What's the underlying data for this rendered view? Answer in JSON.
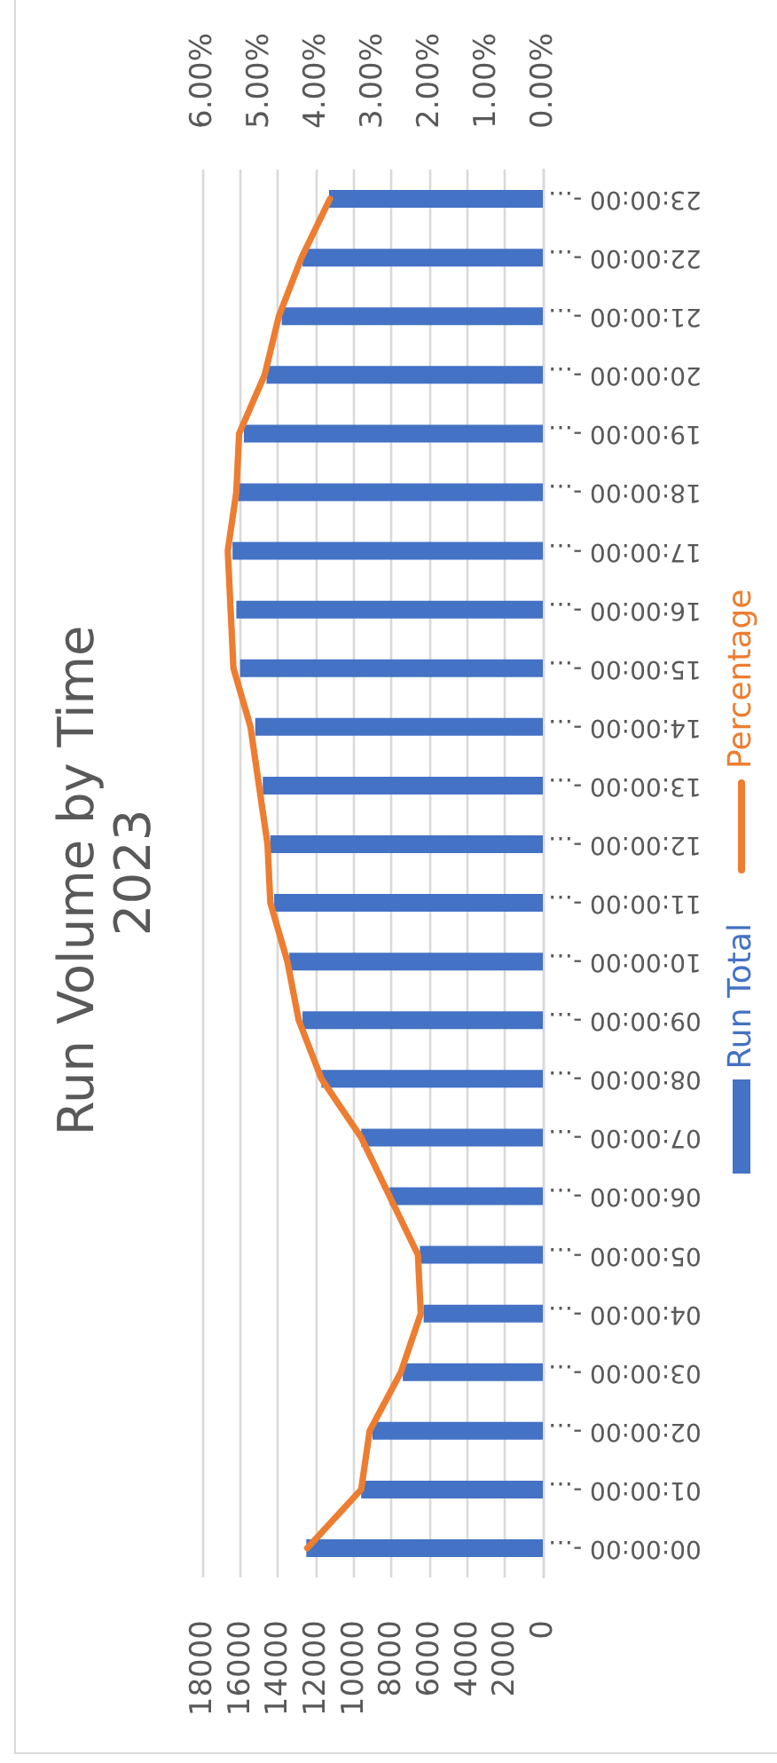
{
  "chart_data": {
    "type": "bar",
    "title": "Run Volume by Time 2023",
    "orientation": "horizontal",
    "categories": [
      "23:00:00 -…",
      "22:00:00 -…",
      "21:00:00 -…",
      "20:00:00 -…",
      "19:00:00 -…",
      "18:00:00 -…",
      "17:00:00 -…",
      "16:00:00 -…",
      "15:00:00 -…",
      "14:00:00 -…",
      "13:00:00 -…",
      "12:00:00 -…",
      "11:00:00 -…",
      "10:00:00 -…",
      "09:00:00 -…",
      "08:00:00 -…",
      "07:00:00 -…",
      "06:00:00 -…",
      "05:00:00 -…",
      "04:00:00 -…",
      "03:00:00 -…",
      "02:00:00 -…",
      "01:00:00 -…",
      "00:00:00 -…"
    ],
    "series": [
      {
        "name": "Run Total",
        "color": "#4472c4",
        "values": [
          11300,
          12700,
          13800,
          14600,
          15800,
          16100,
          16400,
          16200,
          16000,
          15200,
          14800,
          14400,
          14200,
          13400,
          12700,
          11700,
          9600,
          8100,
          6500,
          6300,
          7400,
          9000,
          9600,
          12500
        ]
      },
      {
        "name": "Percentage",
        "type": "line",
        "axis": "x2",
        "color": "#ed7d31",
        "values": [
          3.75,
          4.25,
          4.65,
          4.9,
          5.35,
          5.4,
          5.55,
          5.5,
          5.45,
          5.15,
          5.0,
          4.85,
          4.8,
          4.5,
          4.3,
          3.9,
          3.2,
          2.7,
          2.2,
          2.15,
          2.5,
          3.05,
          3.2,
          4.15
        ]
      }
    ],
    "xlim": [
      18000,
      0
    ],
    "xticks": [
      0,
      2000,
      4000,
      6000,
      8000,
      10000,
      12000,
      14000,
      16000,
      18000
    ],
    "x2lim": [
      6,
      0
    ],
    "x2ticks": [
      {
        "value": 0,
        "label": "0.00%"
      },
      {
        "value": 1,
        "label": "1.00%"
      },
      {
        "value": 2,
        "label": "2.00%"
      },
      {
        "value": 3,
        "label": "3.00%"
      },
      {
        "value": 4,
        "label": "4.00%"
      },
      {
        "value": 5,
        "label": "5.00%"
      },
      {
        "value": 6,
        "label": "6.00%"
      }
    ],
    "grid": "x",
    "legend": "right"
  }
}
